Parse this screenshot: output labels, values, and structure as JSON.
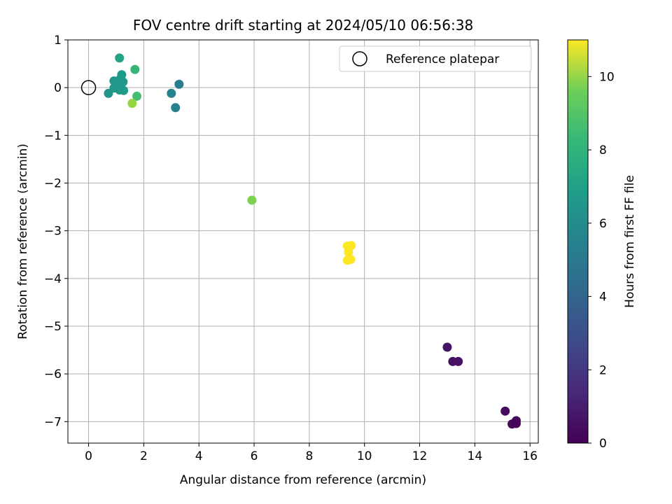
{
  "chart_data": {
    "type": "scatter",
    "title": "FOV centre drift starting at 2024/05/10 06:56:38",
    "xlabel": "Angular distance from reference (arcmin)",
    "ylabel": "Rotation from reference (arcmin)",
    "xlim": [
      -0.75,
      16.3
    ],
    "ylim": [
      -7.45,
      1.0
    ],
    "xticks": [
      0,
      2,
      4,
      6,
      8,
      10,
      12,
      14,
      16
    ],
    "yticks": [
      1,
      0,
      -1,
      -2,
      -3,
      -4,
      -5,
      -6,
      -7
    ],
    "grid": true,
    "legend": {
      "position": "top-right",
      "entries": [
        "Reference platepar"
      ]
    },
    "reference_point": {
      "x": 0,
      "y": 0
    },
    "colorbar": {
      "label": "Hours from first FF file",
      "range": [
        0,
        11
      ],
      "ticks": [
        0,
        2,
        4,
        6,
        8,
        10
      ],
      "colormap": "viridis"
    },
    "points": [
      {
        "x": 15.1,
        "y": -6.78,
        "h": 0.3
      },
      {
        "x": 15.35,
        "y": -7.05,
        "h": 0.2
      },
      {
        "x": 15.5,
        "y": -6.98,
        "h": 0.2
      },
      {
        "x": 15.5,
        "y": -7.04,
        "h": 0.1
      },
      {
        "x": 13.0,
        "y": -5.44,
        "h": 0.6
      },
      {
        "x": 13.2,
        "y": -5.74,
        "h": 0.5
      },
      {
        "x": 13.4,
        "y": -5.74,
        "h": 0.5
      },
      {
        "x": 3.0,
        "y": -0.12,
        "h": 4.9
      },
      {
        "x": 3.15,
        "y": -0.42,
        "h": 4.8
      },
      {
        "x": 3.28,
        "y": 0.07,
        "h": 4.7
      },
      {
        "x": 0.72,
        "y": -0.12,
        "h": 5.7
      },
      {
        "x": 0.92,
        "y": 0.14,
        "h": 5.8
      },
      {
        "x": 0.92,
        "y": -0.01,
        "h": 5.9
      },
      {
        "x": 1.05,
        "y": 0.08,
        "h": 5.8
      },
      {
        "x": 1.12,
        "y": -0.05,
        "h": 5.9
      },
      {
        "x": 1.15,
        "y": 0.18,
        "h": 6.0
      },
      {
        "x": 1.2,
        "y": 0.27,
        "h": 6.0
      },
      {
        "x": 1.25,
        "y": 0.12,
        "h": 5.9
      },
      {
        "x": 1.27,
        "y": -0.06,
        "h": 6.0
      },
      {
        "x": 1.12,
        "y": 0.62,
        "h": 6.4
      },
      {
        "x": 1.68,
        "y": 0.38,
        "h": 7.3
      },
      {
        "x": 1.75,
        "y": -0.18,
        "h": 7.7
      },
      {
        "x": 1.58,
        "y": -0.33,
        "h": 9.2
      },
      {
        "x": 5.92,
        "y": -2.36,
        "h": 8.8
      },
      {
        "x": 9.38,
        "y": -3.32,
        "h": 11.0
      },
      {
        "x": 9.52,
        "y": -3.31,
        "h": 11.0
      },
      {
        "x": 9.42,
        "y": -3.45,
        "h": 11.0
      },
      {
        "x": 9.38,
        "y": -3.62,
        "h": 11.0
      },
      {
        "x": 9.5,
        "y": -3.6,
        "h": 11.0
      }
    ]
  }
}
